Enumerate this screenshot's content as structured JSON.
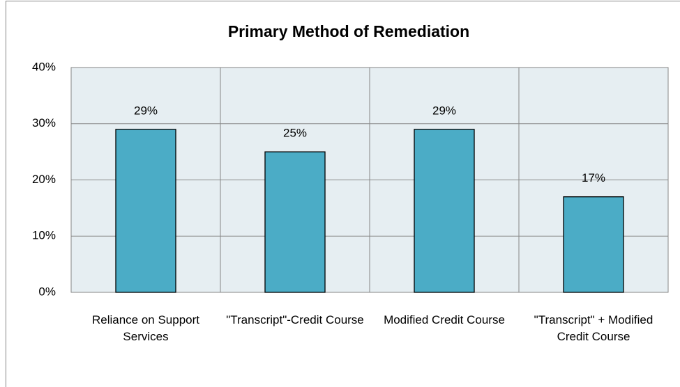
{
  "chart_data": {
    "type": "bar",
    "title": "Primary Method of Remediation",
    "categories": [
      "Reliance on Support Services",
      "\"Transcript\"-Credit Course",
      "Modified Credit Course",
      "\"Transcript\" + Modified Credit Course"
    ],
    "values": [
      29,
      25,
      29,
      17
    ],
    "value_labels": [
      "29%",
      "25%",
      "29%",
      "17%"
    ],
    "color": "#4bacc6",
    "ylim": [
      0,
      40
    ],
    "yticks": [
      {
        "value": 0,
        "label": "0%"
      },
      {
        "value": 10,
        "label": "10%"
      },
      {
        "value": 20,
        "label": "20%"
      },
      {
        "value": 30,
        "label": "30%"
      },
      {
        "value": 40,
        "label": "40%"
      }
    ],
    "grid": true
  }
}
